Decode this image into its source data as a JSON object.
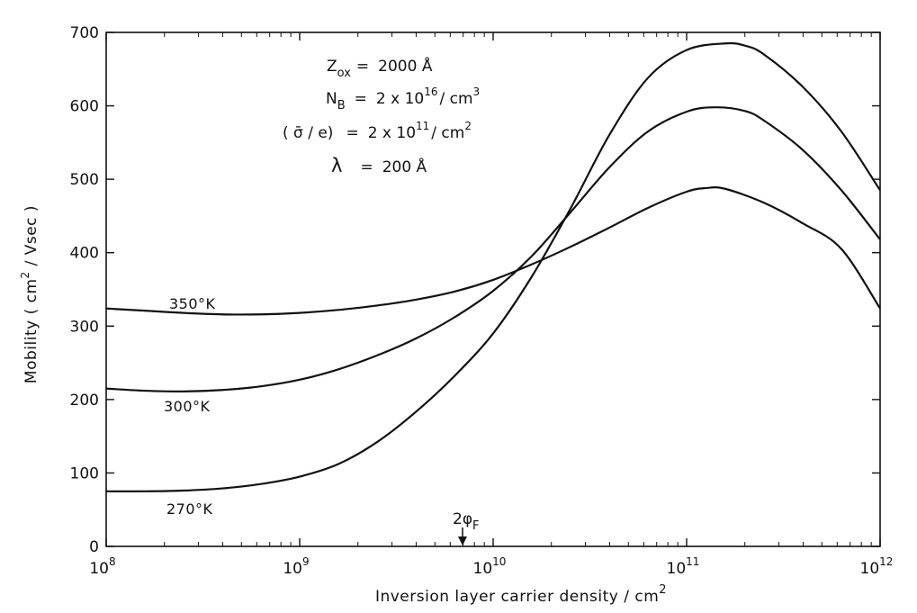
{
  "chart_data": {
    "type": "line",
    "title": "",
    "xlabel": "Inversion layer carrier density / cm",
    "xlabel_sup": "2",
    "ylabel": "Mobility ( cm",
    "ylabel_sup": "2",
    "ylabel_tail": " / Vsec )",
    "x_scale": "log",
    "xlim": [
      100000000.0,
      1000000000000.0
    ],
    "ylim": [
      0,
      700
    ],
    "grid": false,
    "x_ticks": [
      {
        "value": 100000000.0,
        "base": "10",
        "exp": "8"
      },
      {
        "value": 1000000000.0,
        "base": "10",
        "exp": "9"
      },
      {
        "value": 10000000000.0,
        "base": "10",
        "exp": "10"
      },
      {
        "value": 100000000000.0,
        "base": "10",
        "exp": "11"
      },
      {
        "value": 1000000000000.0,
        "base": "10",
        "exp": "12"
      }
    ],
    "y_ticks": [
      0,
      100,
      200,
      300,
      400,
      500,
      600,
      700
    ],
    "series": [
      {
        "name": "350°K",
        "x": [
          100000000.0,
          158000000.0,
          251000000.0,
          398000000.0,
          631000000.0,
          1000000000.0,
          1580000000.0,
          2510000000.0,
          3980000000.0,
          6310000000.0,
          10000000000.0,
          15800000000.0,
          25100000000.0,
          39800000000.0,
          63100000000.0,
          100000000000.0,
          126000000000.0,
          158000000000.0,
          251000000000.0,
          398000000000.0,
          631000000000.0,
          1000000000000.0
        ],
        "y": [
          324,
          321,
          318,
          316,
          316,
          318,
          322,
          328,
          336,
          347,
          363,
          384,
          408,
          434,
          461,
          483,
          488,
          487,
          468,
          440,
          405,
          324
        ]
      },
      {
        "name": "300°K",
        "x": [
          100000000.0,
          158000000.0,
          251000000.0,
          398000000.0,
          631000000.0,
          1000000000.0,
          1580000000.0,
          2510000000.0,
          3980000000.0,
          6310000000.0,
          10000000000.0,
          15800000000.0,
          25100000000.0,
          39800000000.0,
          63100000000.0,
          100000000000.0,
          141000000000.0,
          200000000000.0,
          251000000000.0,
          398000000000.0,
          631000000000.0,
          1000000000000.0
        ],
        "y": [
          215,
          212,
          211,
          213,
          218,
          227,
          241,
          260,
          283,
          312,
          348,
          395,
          455,
          516,
          565,
          592,
          598,
          593,
          580,
          540,
          485,
          418
        ]
      },
      {
        "name": "270°K",
        "x": [
          100000000.0,
          158000000.0,
          251000000.0,
          398000000.0,
          631000000.0,
          1000000000.0,
          1580000000.0,
          2510000000.0,
          3980000000.0,
          6310000000.0,
          10000000000.0,
          15800000000.0,
          25100000000.0,
          39800000000.0,
          63100000000.0,
          100000000000.0,
          158000000000.0,
          200000000000.0,
          251000000000.0,
          398000000000.0,
          631000000000.0,
          1000000000000.0
        ],
        "y": [
          75,
          75,
          76,
          79,
          85,
          95,
          112,
          142,
          183,
          232,
          290,
          367,
          460,
          560,
          638,
          676,
          685,
          682,
          670,
          626,
          565,
          485
        ]
      }
    ],
    "annotations": {
      "params": [
        {
          "lhs": "Z",
          "lhs_sub": "ox",
          "eq": "=",
          "rhs": "2000 Å"
        },
        {
          "lhs": "N",
          "lhs_sub": "B",
          "eq": "=",
          "rhs": "2 x 10",
          "rhs_sup": "16",
          "rhs_tail": "/ cm",
          "rhs_sup2": "3"
        },
        {
          "lhs": "( σ̄ / e)",
          "eq": "=",
          "rhs": "2 x 10",
          "rhs_sup": "11",
          "rhs_tail": "/ cm",
          "rhs_sup2": "2"
        },
        {
          "lhs": "λ",
          "eq": "=",
          "rhs": "200 Å"
        }
      ],
      "marker": {
        "text": "2φ",
        "sub": "F",
        "x": 6800000000.0
      }
    },
    "colors": {
      "line": "#111111",
      "background": "#ffffff"
    }
  }
}
